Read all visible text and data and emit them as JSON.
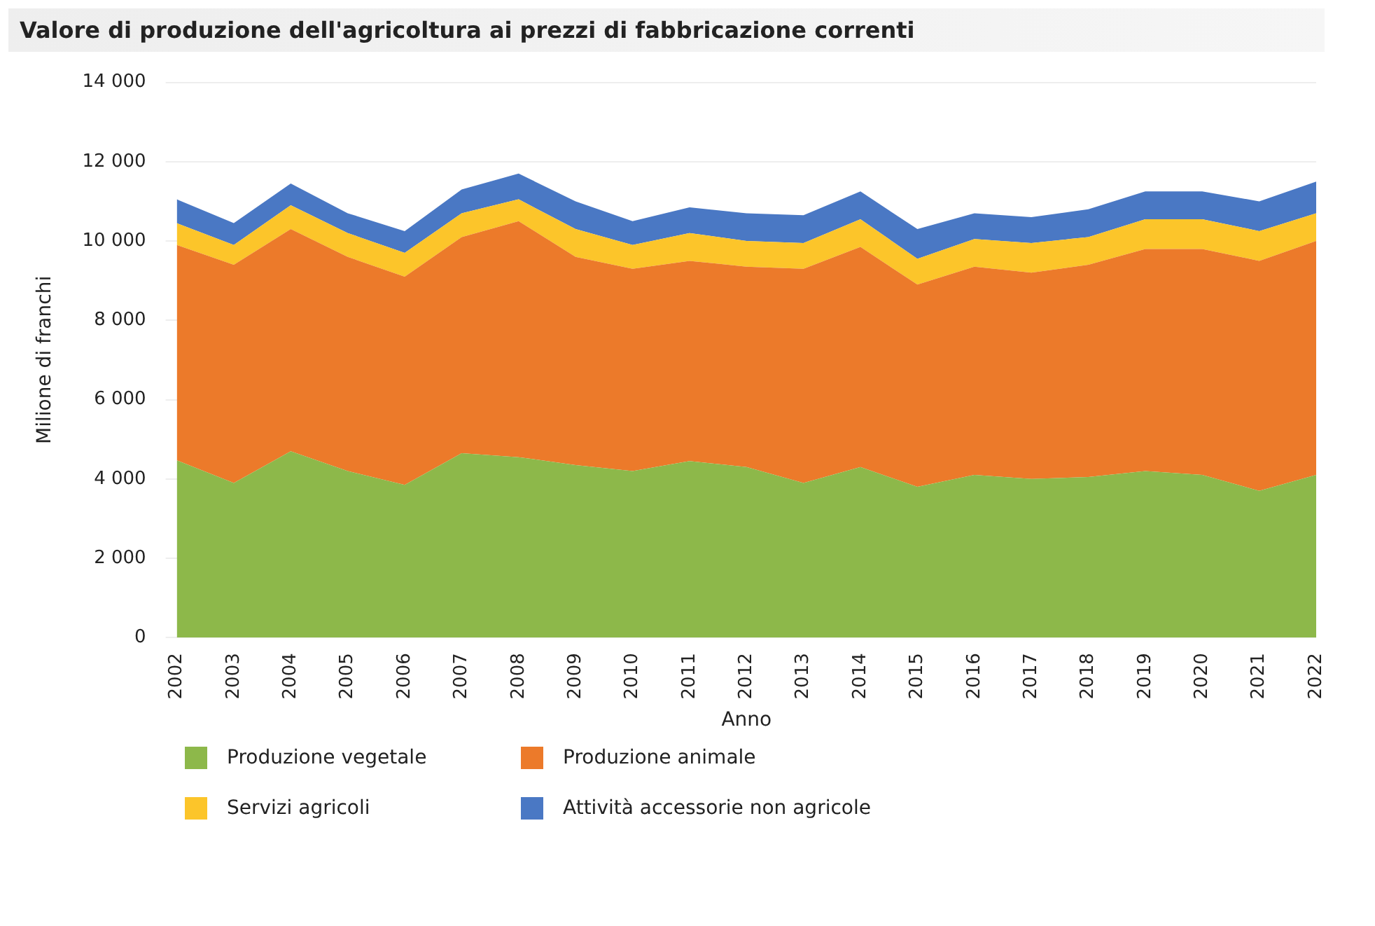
{
  "chart_data": {
    "type": "area",
    "title": "Valore di produzione dell'agricoltura ai prezzi di fabbricazione correnti",
    "xlabel": "Anno",
    "ylabel": "Milione di franchi",
    "categories": [
      "2002",
      "2003",
      "2004",
      "2005",
      "2006",
      "2007",
      "2008",
      "2009",
      "2010",
      "2011",
      "2012",
      "2013",
      "2014",
      "2015",
      "2016",
      "2017",
      "2018",
      "2019",
      "2020",
      "2021",
      "2022"
    ],
    "stacked": true,
    "grid": "y",
    "legend": "bottom",
    "marker": "none",
    "ylim": [
      0,
      14000
    ],
    "yticks": [
      0,
      {
        "value": 2000,
        "label": "2 000"
      },
      {
        "value": 4000,
        "label": "4 000"
      },
      {
        "value": 6000,
        "label": "6 000"
      },
      {
        "value": 8000,
        "label": "8 000"
      },
      {
        "value": 10000,
        "label": "10 000"
      },
      {
        "value": 12000,
        "label": "12 000"
      },
      {
        "value": 14000,
        "label": "14 000"
      }
    ],
    "series": [
      {
        "name": "Produzione vegetale",
        "color": "#8db84a",
        "values": [
          4470,
          3900,
          4700,
          4200,
          3850,
          4650,
          4550,
          4350,
          4200,
          4450,
          4300,
          3900,
          4300,
          3800,
          4100,
          4000,
          4050,
          4200,
          4100,
          3700,
          4100
        ]
      },
      {
        "name": "Produzione animale",
        "color": "#ec7a2a",
        "values": [
          5430,
          5500,
          5600,
          5400,
          5250,
          5450,
          5950,
          5250,
          5100,
          5050,
          5050,
          5400,
          5550,
          5100,
          5250,
          5200,
          5350,
          5600,
          5700,
          5800,
          5900
        ]
      },
      {
        "name": "Servizi agricoli",
        "color": "#fcc52a",
        "values": [
          550,
          500,
          600,
          600,
          600,
          600,
          550,
          700,
          600,
          700,
          650,
          650,
          700,
          650,
          700,
          750,
          700,
          750,
          750,
          750,
          700
        ]
      },
      {
        "name": "Attività accessorie non agricole",
        "color": "#4a78c4",
        "values": [
          600,
          550,
          550,
          500,
          550,
          600,
          650,
          700,
          600,
          650,
          700,
          700,
          700,
          750,
          650,
          650,
          700,
          700,
          700,
          750,
          800
        ]
      }
    ]
  }
}
